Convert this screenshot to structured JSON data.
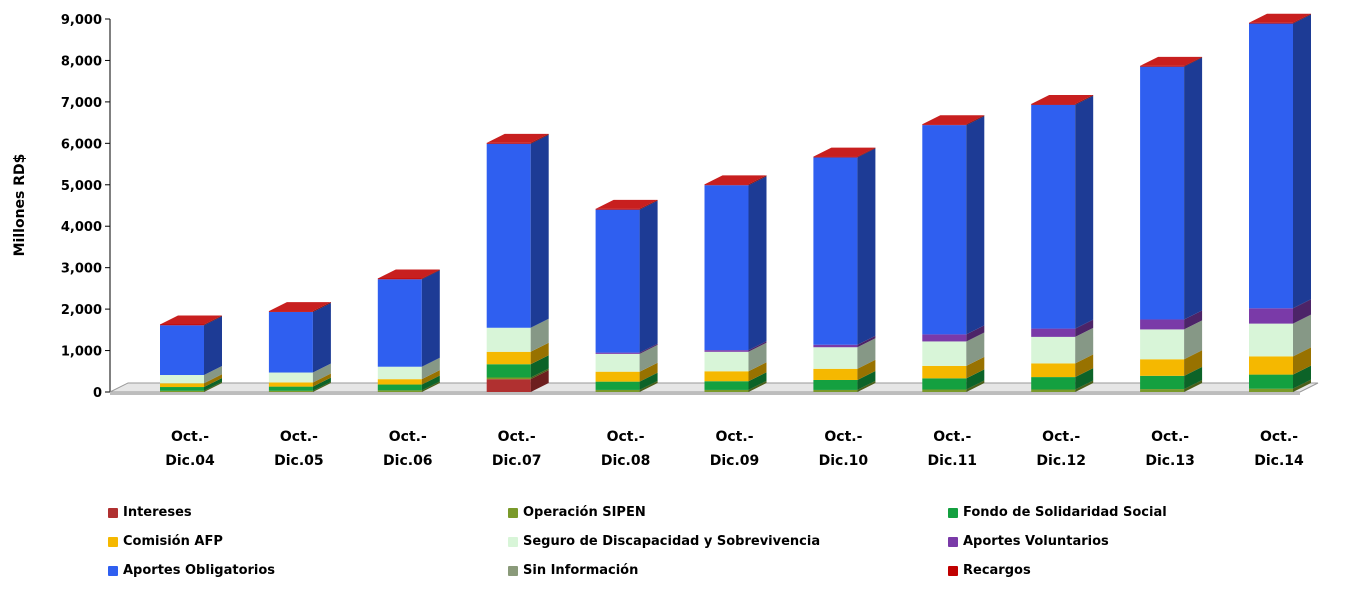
{
  "chart_data": {
    "type": "bar",
    "stacked": true,
    "style": "3d",
    "title": "",
    "ylabel": "Millones RD$",
    "xlabel": "",
    "ylim": [
      0,
      9000
    ],
    "yticks": [
      "0",
      "1,000",
      "2,000",
      "3,000",
      "4,000",
      "5,000",
      "6,000",
      "7,000",
      "8,000",
      "9,000"
    ],
    "categories": [
      [
        "Oct.-",
        "Dic.04"
      ],
      [
        "Oct.-",
        "Dic.05"
      ],
      [
        "Oct.-",
        "Dic.06"
      ],
      [
        "Oct.-",
        "Dic.07"
      ],
      [
        "Oct.-",
        "Dic.08"
      ],
      [
        "Oct.-",
        "Dic.09"
      ],
      [
        "Oct.-",
        "Dic.10"
      ],
      [
        "Oct.-",
        "Dic.11"
      ],
      [
        "Oct.-",
        "Dic.12"
      ],
      [
        "Oct.-",
        "Dic.13"
      ],
      [
        "Oct.-",
        "Dic.14"
      ]
    ],
    "series": [
      {
        "name": "Intereses",
        "color": "#b03030",
        "values": [
          0,
          0,
          0,
          310,
          0,
          0,
          0,
          0,
          0,
          0,
          0
        ]
      },
      {
        "name": "Operación SIPEN",
        "color": "#7a9a2a",
        "values": [
          30,
          30,
          40,
          40,
          50,
          50,
          50,
          60,
          60,
          70,
          80
        ]
      },
      {
        "name": "Fondo de Solidaridad Social",
        "color": "#14a040",
        "values": [
          90,
          100,
          140,
          320,
          200,
          210,
          240,
          270,
          300,
          320,
          340
        ]
      },
      {
        "name": "Comisión AFP",
        "color": "#f5b800",
        "values": [
          90,
          100,
          130,
          300,
          240,
          240,
          270,
          300,
          330,
          400,
          440
        ]
      },
      {
        "name": "Seguro de Discapacidad y Sobrevivencia",
        "color": "#d8f5d8",
        "values": [
          200,
          240,
          300,
          580,
          430,
          470,
          520,
          590,
          640,
          720,
          790
        ]
      },
      {
        "name": "Aportes Voluntarios",
        "color": "#7a3aa8",
        "values": [
          0,
          0,
          0,
          0,
          30,
          40,
          60,
          170,
          200,
          240,
          370
        ]
      },
      {
        "name": "Aportes Obligatorios",
        "color": "#2f5ff0",
        "values": [
          1200,
          1460,
          2110,
          4440,
          3450,
          3980,
          4520,
          5050,
          5400,
          6100,
          6870
        ]
      },
      {
        "name": "Sin Información",
        "color": "#8a9a7a",
        "values": [
          0,
          0,
          0,
          0,
          0,
          0,
          0,
          0,
          0,
          0,
          0
        ]
      },
      {
        "name": "Recargos",
        "color": "#c00000",
        "values": [
          20,
          20,
          20,
          20,
          20,
          20,
          20,
          20,
          20,
          20,
          20
        ]
      }
    ],
    "legend_position": "bottom",
    "grid": false
  }
}
